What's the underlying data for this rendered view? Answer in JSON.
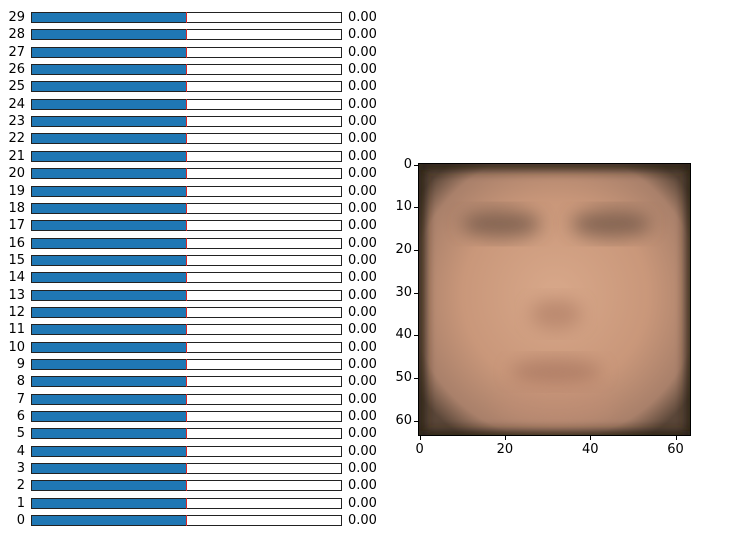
{
  "sliders": [
    {
      "index": "29",
      "value": "0.00",
      "fraction": 0.5
    },
    {
      "index": "28",
      "value": "0.00",
      "fraction": 0.5
    },
    {
      "index": "27",
      "value": "0.00",
      "fraction": 0.5
    },
    {
      "index": "26",
      "value": "0.00",
      "fraction": 0.5
    },
    {
      "index": "25",
      "value": "0.00",
      "fraction": 0.5
    },
    {
      "index": "24",
      "value": "0.00",
      "fraction": 0.5
    },
    {
      "index": "23",
      "value": "0.00",
      "fraction": 0.5
    },
    {
      "index": "22",
      "value": "0.00",
      "fraction": 0.5
    },
    {
      "index": "21",
      "value": "0.00",
      "fraction": 0.5
    },
    {
      "index": "20",
      "value": "0.00",
      "fraction": 0.5
    },
    {
      "index": "19",
      "value": "0.00",
      "fraction": 0.5
    },
    {
      "index": "18",
      "value": "0.00",
      "fraction": 0.5
    },
    {
      "index": "17",
      "value": "0.00",
      "fraction": 0.5
    },
    {
      "index": "16",
      "value": "0.00",
      "fraction": 0.5
    },
    {
      "index": "15",
      "value": "0.00",
      "fraction": 0.5
    },
    {
      "index": "14",
      "value": "0.00",
      "fraction": 0.5
    },
    {
      "index": "13",
      "value": "0.00",
      "fraction": 0.5
    },
    {
      "index": "12",
      "value": "0.00",
      "fraction": 0.5
    },
    {
      "index": "11",
      "value": "0.00",
      "fraction": 0.5
    },
    {
      "index": "10",
      "value": "0.00",
      "fraction": 0.5
    },
    {
      "index": "9",
      "value": "0.00",
      "fraction": 0.5
    },
    {
      "index": "8",
      "value": "0.00",
      "fraction": 0.5
    },
    {
      "index": "7",
      "value": "0.00",
      "fraction": 0.5
    },
    {
      "index": "6",
      "value": "0.00",
      "fraction": 0.5
    },
    {
      "index": "5",
      "value": "0.00",
      "fraction": 0.5
    },
    {
      "index": "4",
      "value": "0.00",
      "fraction": 0.5
    },
    {
      "index": "3",
      "value": "0.00",
      "fraction": 0.5
    },
    {
      "index": "2",
      "value": "0.00",
      "fraction": 0.5
    },
    {
      "index": "1",
      "value": "0.00",
      "fraction": 0.5
    },
    {
      "index": "0",
      "value": "0.00",
      "fraction": 0.5
    }
  ],
  "image_axes": {
    "y_ticks": [
      "0",
      "10",
      "20",
      "30",
      "40",
      "50",
      "60"
    ],
    "x_ticks": [
      "0",
      "20",
      "40",
      "60"
    ],
    "range": [
      0,
      64
    ]
  },
  "colors": {
    "slider_fill": "#1f77b4",
    "slider_marker": "#d62728"
  }
}
